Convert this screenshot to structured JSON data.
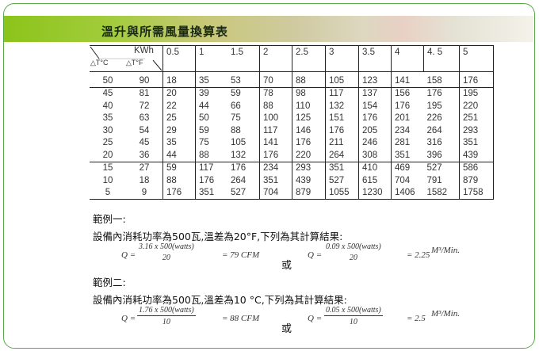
{
  "title": "溫升與所需風量換算表",
  "table": {
    "corner_top": "KWh",
    "corner_c": "△T°C",
    "corner_f": "△T°F",
    "kwh": [
      "0.5",
      "1",
      "1.5",
      "2",
      "2.5",
      "3",
      "3.5",
      "4",
      "4. 5",
      "5"
    ],
    "rows": [
      [
        "50",
        "90",
        "18",
        "35",
        "53",
        "70",
        "88",
        "105",
        "123",
        "141",
        "158",
        "176"
      ],
      [
        "45",
        "81",
        "20",
        "39",
        "59",
        "78",
        "98",
        "117",
        "137",
        "156",
        "176",
        "195"
      ],
      [
        "40",
        "72",
        "22",
        "44",
        "66",
        "88",
        "110",
        "132",
        "154",
        "176",
        "195",
        "220"
      ],
      [
        "35",
        "63",
        "25",
        "50",
        "75",
        "100",
        "125",
        "151",
        "176",
        "201",
        "226",
        "251"
      ],
      [
        "30",
        "54",
        "29",
        "59",
        "88",
        "117",
        "146",
        "176",
        "205",
        "234",
        "264",
        "293"
      ],
      [
        "25",
        "45",
        "35",
        "75",
        "105",
        "141",
        "176",
        "211",
        "246",
        "281",
        "316",
        "351"
      ],
      [
        "20",
        "36",
        "44",
        "88",
        "132",
        "176",
        "220",
        "264",
        "308",
        "351",
        "396",
        "439"
      ],
      [
        "15",
        "27",
        "59",
        "117",
        "176",
        "234",
        "293",
        "351",
        "410",
        "469",
        "527",
        "586"
      ],
      [
        "10",
        "18",
        "88",
        "176",
        "264",
        "351",
        "439",
        "527",
        "615",
        "704",
        "791",
        "879"
      ],
      [
        "5",
        "9",
        "176",
        "351",
        "527",
        "704",
        "879",
        "1055",
        "1230",
        "1406",
        "1582",
        "1758"
      ]
    ]
  },
  "examples": [
    {
      "heading": "範例一:",
      "text": "設備內消耗功率為500瓦,溫差為20°F,下列為其計算結果:",
      "q": "Q =",
      "cfm_num": "3.16 x 500(watts)",
      "cfm_den": "20",
      "cfm_result": "= 79 CFM",
      "or": "或",
      "m3_num": "0.09 x 500(watts)",
      "m3_den": "20",
      "m3_result": "= 2.25",
      "m3_unit": "M³/Min."
    },
    {
      "heading": "範例二:",
      "text": "設備內消耗功率為500瓦,溫差為10 °C,下列為其計算結果:",
      "q": "Q =",
      "cfm_num": "1.76 x 500(watts)",
      "cfm_den": "10",
      "cfm_result": "= 88 CFM",
      "or": "或",
      "m3_num": "0.05 x 500(watts)",
      "m3_den": "10",
      "m3_result": "= 2.5",
      "m3_unit": "M³/Min."
    }
  ],
  "colors": {
    "frame": "#5aa84a",
    "banner_start": "#8cc41a"
  }
}
